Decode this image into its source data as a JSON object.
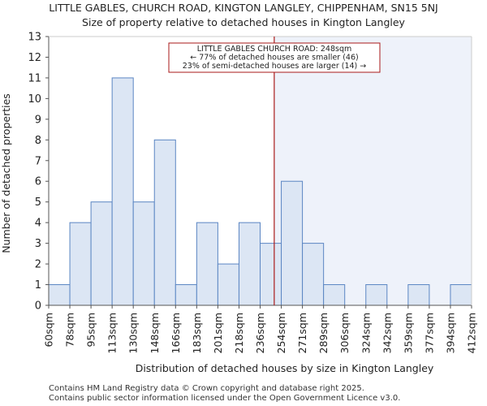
{
  "chart_data": {
    "type": "bar",
    "title": "LITTLE GABLES, CHURCH ROAD, KINGTON LANGLEY, CHIPPENHAM, SN15 5NJ",
    "subtitle": "Size of property relative to detached houses in Kington Langley",
    "xlabel": "Distribution of detached houses by size in Kington Langley",
    "ylabel": "Number of detached properties",
    "bin_edges": [
      60,
      78,
      95,
      113,
      130,
      148,
      166,
      183,
      201,
      218,
      236,
      254,
      271,
      289,
      306,
      324,
      342,
      359,
      377,
      394,
      412
    ],
    "tick_labels": [
      "60sqm",
      "78sqm",
      "95sqm",
      "113sqm",
      "130sqm",
      "148sqm",
      "166sqm",
      "183sqm",
      "201sqm",
      "218sqm",
      "236sqm",
      "254sqm",
      "271sqm",
      "289sqm",
      "306sqm",
      "324sqm",
      "342sqm",
      "359sqm",
      "377sqm",
      "394sqm",
      "412sqm"
    ],
    "values": [
      1,
      4,
      5,
      11,
      5,
      8,
      1,
      4,
      2,
      4,
      3,
      6,
      3,
      1,
      0,
      1,
      0,
      1,
      0,
      1
    ],
    "ylim": [
      0,
      13
    ],
    "yticks": [
      0,
      1,
      2,
      3,
      4,
      5,
      6,
      7,
      8,
      9,
      10,
      11,
      12,
      13
    ],
    "marker": {
      "value": 248,
      "line_color": "#aa1a1a",
      "annotation": [
        "LITTLE GABLES CHURCH ROAD: 248sqm",
        "← 77% of detached houses are smaller (46)",
        "23% of semi-detached houses are larger (14) →"
      ]
    },
    "grid": false,
    "colors": {
      "bar_fill": "#dce6f4",
      "bar_edge": "#5b86c3",
      "highlight_region": "#eef2fa",
      "axis": "#555555"
    }
  },
  "footer": {
    "line1": "Contains HM Land Registry data © Crown copyright and database right 2025.",
    "line2": "Contains public sector information licensed under the Open Government Licence v3.0."
  }
}
